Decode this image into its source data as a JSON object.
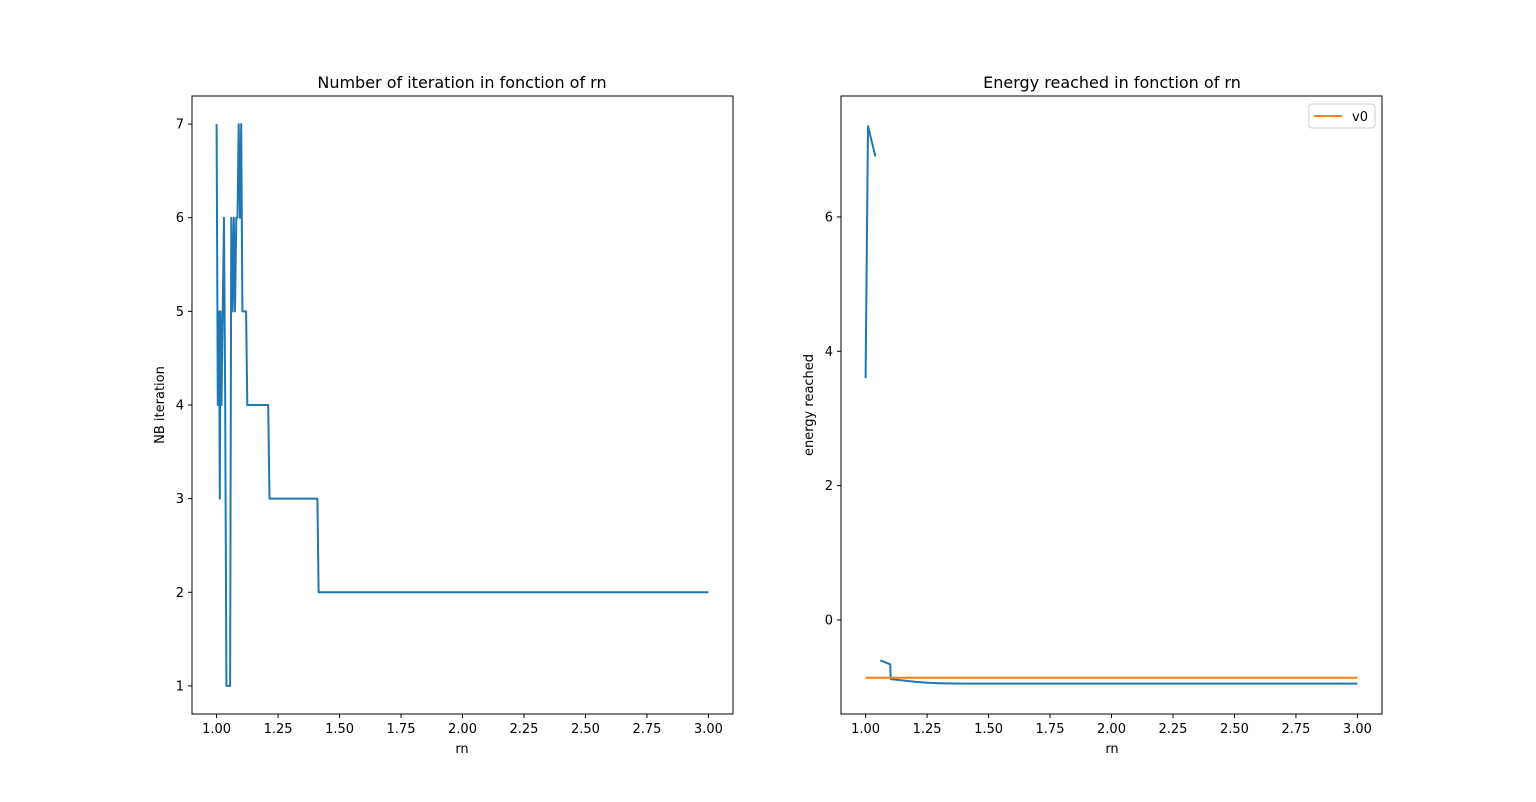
{
  "chart_data": [
    {
      "type": "line",
      "title": "Number of iteration in fonction of rn",
      "xlabel": "rn",
      "ylabel": "NB iteration",
      "xlim": [
        0.9,
        3.1
      ],
      "ylim": [
        0.7,
        7.3
      ],
      "xticks": [
        "1.00",
        "1.25",
        "1.50",
        "1.75",
        "2.00",
        "2.25",
        "2.50",
        "2.75",
        "3.00"
      ],
      "xtick_values": [
        1.0,
        1.25,
        1.5,
        1.75,
        2.0,
        2.25,
        2.5,
        2.75,
        3.0
      ],
      "yticks": [
        "1",
        "2",
        "3",
        "4",
        "5",
        "6",
        "7"
      ],
      "ytick_values": [
        1,
        2,
        3,
        4,
        5,
        6,
        7
      ],
      "grid": false,
      "series": [
        {
          "color": "#1f77b4",
          "segments": [
            [
              [
                1.0,
                7
              ],
              [
                1.005,
                4
              ],
              [
                1.01,
                5
              ],
              [
                1.013,
                3
              ],
              [
                1.016,
                5
              ],
              [
                1.02,
                4
              ],
              [
                1.025,
                5
              ],
              [
                1.03,
                6
              ],
              [
                1.035,
                4
              ],
              [
                1.04,
                1
              ],
              [
                1.05,
                1
              ],
              [
                1.055,
                1
              ],
              [
                1.06,
                6
              ],
              [
                1.065,
                5
              ],
              [
                1.07,
                6
              ],
              [
                1.075,
                5
              ],
              [
                1.08,
                6
              ],
              [
                1.085,
                6
              ],
              [
                1.09,
                7
              ],
              [
                1.095,
                6
              ],
              [
                1.1,
                7
              ],
              [
                1.105,
                5
              ],
              [
                1.12,
                5
              ],
              [
                1.125,
                4
              ],
              [
                1.21,
                4
              ],
              [
                1.215,
                3
              ],
              [
                1.41,
                3
              ],
              [
                1.415,
                2
              ],
              [
                3.0,
                2
              ]
            ]
          ]
        }
      ]
    },
    {
      "type": "line",
      "title": "Energy reached in fonction of rn",
      "xlabel": "rn",
      "ylabel": "energy reached",
      "xlim": [
        0.9,
        3.1
      ],
      "ylim": [
        -1.4,
        7.8
      ],
      "xticks": [
        "1.00",
        "1.25",
        "1.50",
        "1.75",
        "2.00",
        "2.25",
        "2.50",
        "2.75",
        "3.00"
      ],
      "xtick_values": [
        1.0,
        1.25,
        1.5,
        1.75,
        2.0,
        2.25,
        2.5,
        2.75,
        3.0
      ],
      "yticks": [
        "0",
        "2",
        "4",
        "6"
      ],
      "ytick_values": [
        0,
        2,
        4,
        6
      ],
      "grid": false,
      "legend": {
        "placement": "top-right",
        "entries": [
          "v0"
        ]
      },
      "series": [
        {
          "color": "#1f77b4",
          "segments": [
            [
              [
                1.0,
                3.6
              ],
              [
                1.01,
                7.35
              ],
              [
                1.04,
                6.9
              ]
            ],
            [
              [
                1.06,
                -0.6
              ],
              [
                1.1,
                -0.66
              ],
              [
                1.102,
                -0.88
              ],
              [
                1.15,
                -0.9
              ],
              [
                1.2,
                -0.92
              ],
              [
                1.25,
                -0.935
              ],
              [
                1.3,
                -0.942
              ],
              [
                1.4,
                -0.947
              ],
              [
                1.5,
                -0.948
              ],
              [
                2.0,
                -0.948
              ],
              [
                3.0,
                -0.948
              ]
            ]
          ]
        },
        {
          "name": "v0",
          "color": "#ff7f0e",
          "segments": [
            [
              [
                1.0,
                -0.86
              ],
              [
                3.0,
                -0.86
              ]
            ]
          ]
        }
      ]
    }
  ]
}
